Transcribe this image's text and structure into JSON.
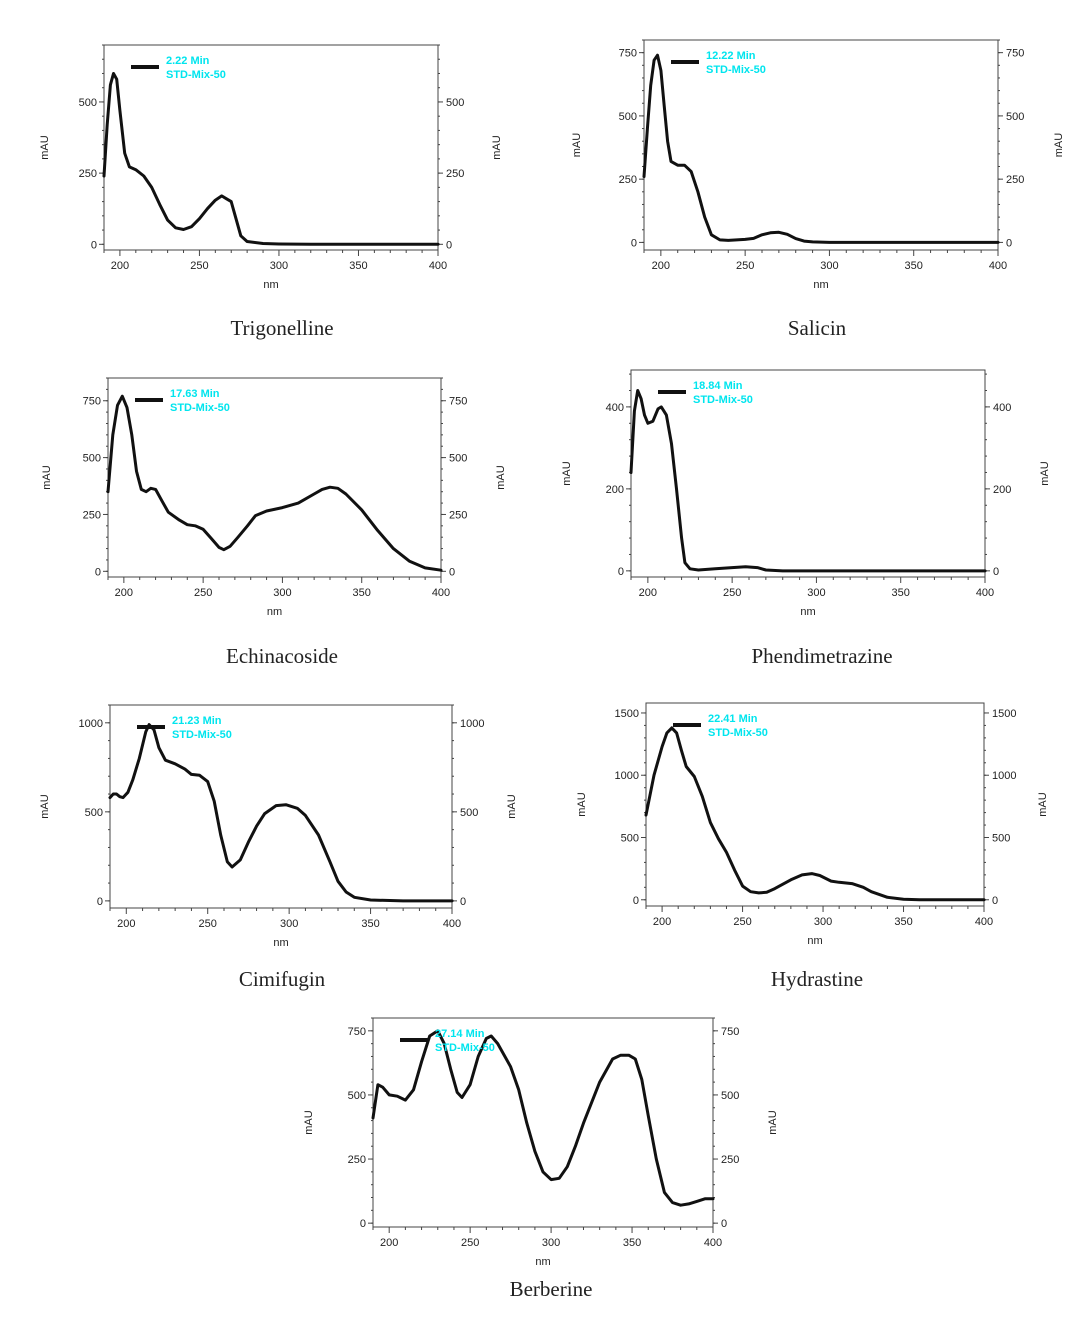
{
  "style": {
    "trace_color": "#111111",
    "legend_text_color": "#00e5ee",
    "axis_color": "#444444"
  },
  "chart_data": [
    {
      "type": "line",
      "caption": "Trigonelline",
      "legend_time": "2.22 Min",
      "legend_sample": "STD-Mix-50",
      "xlabel": "nm",
      "ylabel_left": "mAU",
      "ylabel_right": "mAU",
      "xlim": [
        190,
        400
      ],
      "ylim": [
        -20,
        700
      ],
      "xticks": [
        200,
        250,
        300,
        350,
        400
      ],
      "yticks": [
        0,
        250,
        500
      ],
      "points": [
        [
          190,
          240
        ],
        [
          192,
          420
        ],
        [
          194,
          560
        ],
        [
          196,
          600
        ],
        [
          198,
          580
        ],
        [
          200,
          470
        ],
        [
          203,
          320
        ],
        [
          206,
          272
        ],
        [
          210,
          262
        ],
        [
          215,
          240
        ],
        [
          220,
          200
        ],
        [
          225,
          140
        ],
        [
          230,
          85
        ],
        [
          235,
          58
        ],
        [
          240,
          52
        ],
        [
          245,
          62
        ],
        [
          250,
          90
        ],
        [
          255,
          125
        ],
        [
          260,
          155
        ],
        [
          264,
          170
        ],
        [
          267,
          160
        ],
        [
          270,
          150
        ],
        [
          273,
          90
        ],
        [
          276,
          30
        ],
        [
          280,
          10
        ],
        [
          290,
          3
        ],
        [
          300,
          1
        ],
        [
          320,
          0
        ],
        [
          350,
          0
        ],
        [
          400,
          0
        ]
      ]
    },
    {
      "type": "line",
      "caption": "Salicin",
      "legend_time": "12.22 Min",
      "legend_sample": "STD-Mix-50",
      "xlabel": "nm",
      "ylabel_left": "mAU",
      "ylabel_right": "mAU",
      "xlim": [
        190,
        400
      ],
      "ylim": [
        -30,
        800
      ],
      "xticks": [
        200,
        250,
        300,
        350,
        400
      ],
      "yticks": [
        0,
        250,
        500,
        750
      ],
      "points": [
        [
          190,
          260
        ],
        [
          192,
          450
        ],
        [
          194,
          620
        ],
        [
          196,
          720
        ],
        [
          198,
          740
        ],
        [
          200,
          680
        ],
        [
          202,
          540
        ],
        [
          204,
          400
        ],
        [
          206,
          320
        ],
        [
          210,
          305
        ],
        [
          214,
          305
        ],
        [
          218,
          280
        ],
        [
          222,
          200
        ],
        [
          226,
          100
        ],
        [
          230,
          30
        ],
        [
          235,
          10
        ],
        [
          240,
          8
        ],
        [
          250,
          12
        ],
        [
          255,
          16
        ],
        [
          260,
          30
        ],
        [
          265,
          38
        ],
        [
          270,
          40
        ],
        [
          275,
          32
        ],
        [
          280,
          15
        ],
        [
          285,
          5
        ],
        [
          290,
          2
        ],
        [
          300,
          0
        ],
        [
          350,
          0
        ],
        [
          400,
          0
        ]
      ]
    },
    {
      "type": "line",
      "caption": "Echinacoside",
      "legend_time": "17.63 Min",
      "legend_sample": "STD-Mix-50",
      "xlabel": "nm",
      "ylabel_left": "mAU",
      "ylabel_right": "mAU",
      "xlim": [
        190,
        400
      ],
      "ylim": [
        -25,
        850
      ],
      "xticks": [
        200,
        250,
        300,
        350,
        400
      ],
      "yticks": [
        0,
        250,
        500,
        750
      ],
      "points": [
        [
          190,
          350
        ],
        [
          193,
          600
        ],
        [
          196,
          730
        ],
        [
          199,
          770
        ],
        [
          202,
          720
        ],
        [
          205,
          600
        ],
        [
          208,
          440
        ],
        [
          211,
          360
        ],
        [
          214,
          350
        ],
        [
          217,
          365
        ],
        [
          220,
          360
        ],
        [
          224,
          310
        ],
        [
          228,
          260
        ],
        [
          235,
          225
        ],
        [
          240,
          205
        ],
        [
          245,
          200
        ],
        [
          250,
          185
        ],
        [
          255,
          145
        ],
        [
          260,
          105
        ],
        [
          263,
          95
        ],
        [
          267,
          110
        ],
        [
          272,
          150
        ],
        [
          278,
          200
        ],
        [
          283,
          245
        ],
        [
          290,
          265
        ],
        [
          300,
          280
        ],
        [
          310,
          300
        ],
        [
          320,
          340
        ],
        [
          325,
          360
        ],
        [
          330,
          370
        ],
        [
          335,
          365
        ],
        [
          340,
          340
        ],
        [
          350,
          270
        ],
        [
          360,
          180
        ],
        [
          370,
          100
        ],
        [
          380,
          45
        ],
        [
          390,
          15
        ],
        [
          400,
          5
        ]
      ]
    },
    {
      "type": "line",
      "caption": "Phendimetrazine",
      "legend_time": "18.84 Min",
      "legend_sample": "STD-Mix-50",
      "xlabel": "nm",
      "ylabel_left": "mAU",
      "ylabel_right": "mAU",
      "xlim": [
        190,
        400
      ],
      "ylim": [
        -15,
        490
      ],
      "xticks": [
        200,
        250,
        300,
        350,
        400
      ],
      "yticks": [
        0,
        200,
        400
      ],
      "points": [
        [
          190,
          240
        ],
        [
          192,
          390
        ],
        [
          194,
          440
        ],
        [
          196,
          420
        ],
        [
          198,
          380
        ],
        [
          200,
          360
        ],
        [
          203,
          365
        ],
        [
          206,
          395
        ],
        [
          208,
          400
        ],
        [
          211,
          380
        ],
        [
          214,
          310
        ],
        [
          217,
          200
        ],
        [
          220,
          80
        ],
        [
          222,
          20
        ],
        [
          225,
          5
        ],
        [
          230,
          2
        ],
        [
          240,
          5
        ],
        [
          250,
          8
        ],
        [
          258,
          10
        ],
        [
          265,
          8
        ],
        [
          270,
          2
        ],
        [
          280,
          0
        ],
        [
          300,
          0
        ],
        [
          350,
          0
        ],
        [
          400,
          0
        ]
      ]
    },
    {
      "type": "line",
      "caption": "Cimifugin",
      "legend_time": "21.23 Min",
      "legend_sample": "STD-Mix-50",
      "xlabel": "nm",
      "ylabel_left": "mAU",
      "ylabel_right": "mAU",
      "xlim": [
        190,
        400
      ],
      "ylim": [
        -40,
        1100
      ],
      "xticks": [
        200,
        250,
        300,
        350,
        400
      ],
      "yticks": [
        0,
        500,
        1000
      ],
      "points": [
        [
          190,
          580
        ],
        [
          192,
          600
        ],
        [
          194,
          600
        ],
        [
          196,
          585
        ],
        [
          198,
          580
        ],
        [
          201,
          610
        ],
        [
          204,
          680
        ],
        [
          208,
          800
        ],
        [
          212,
          950
        ],
        [
          214,
          990
        ],
        [
          217,
          960
        ],
        [
          220,
          860
        ],
        [
          224,
          790
        ],
        [
          230,
          770
        ],
        [
          236,
          740
        ],
        [
          240,
          710
        ],
        [
          245,
          705
        ],
        [
          250,
          670
        ],
        [
          254,
          560
        ],
        [
          258,
          370
        ],
        [
          262,
          220
        ],
        [
          265,
          190
        ],
        [
          270,
          230
        ],
        [
          275,
          330
        ],
        [
          280,
          420
        ],
        [
          285,
          490
        ],
        [
          292,
          535
        ],
        [
          298,
          540
        ],
        [
          305,
          520
        ],
        [
          310,
          480
        ],
        [
          318,
          370
        ],
        [
          325,
          220
        ],
        [
          330,
          110
        ],
        [
          335,
          50
        ],
        [
          340,
          20
        ],
        [
          350,
          5
        ],
        [
          370,
          0
        ],
        [
          400,
          0
        ]
      ]
    },
    {
      "type": "line",
      "caption": "Hydrastine",
      "legend_time": "22.41 Min",
      "legend_sample": "STD-Mix-50",
      "xlabel": "nm",
      "ylabel_left": "mAU",
      "ylabel_right": "mAU",
      "xlim": [
        190,
        400
      ],
      "ylim": [
        -50,
        1580
      ],
      "xticks": [
        200,
        250,
        300,
        350,
        400
      ],
      "yticks": [
        0,
        500,
        1000,
        1500
      ],
      "points": [
        [
          190,
          680
        ],
        [
          195,
          1000
        ],
        [
          200,
          1230
        ],
        [
          203,
          1340
        ],
        [
          206,
          1380
        ],
        [
          209,
          1340
        ],
        [
          212,
          1200
        ],
        [
          215,
          1070
        ],
        [
          220,
          990
        ],
        [
          225,
          830
        ],
        [
          230,
          620
        ],
        [
          235,
          490
        ],
        [
          240,
          380
        ],
        [
          245,
          240
        ],
        [
          250,
          110
        ],
        [
          255,
          65
        ],
        [
          260,
          55
        ],
        [
          265,
          60
        ],
        [
          270,
          90
        ],
        [
          280,
          160
        ],
        [
          287,
          200
        ],
        [
          293,
          210
        ],
        [
          298,
          195
        ],
        [
          305,
          150
        ],
        [
          310,
          140
        ],
        [
          318,
          130
        ],
        [
          325,
          100
        ],
        [
          330,
          65
        ],
        [
          340,
          20
        ],
        [
          350,
          5
        ],
        [
          360,
          0
        ],
        [
          400,
          0
        ]
      ]
    },
    {
      "type": "line",
      "caption": "Berberine",
      "legend_time": "27.14 Min",
      "legend_sample": "STD-Mix-50",
      "xlabel": "nm",
      "ylabel_left": "mAU",
      "ylabel_right": "mAU",
      "xlim": [
        190,
        400
      ],
      "ylim": [
        -15,
        800
      ],
      "xticks": [
        200,
        250,
        300,
        350,
        400
      ],
      "yticks": [
        0,
        250,
        500,
        750
      ],
      "points": [
        [
          190,
          410
        ],
        [
          193,
          540
        ],
        [
          196,
          530
        ],
        [
          200,
          500
        ],
        [
          205,
          495
        ],
        [
          210,
          480
        ],
        [
          215,
          520
        ],
        [
          220,
          630
        ],
        [
          225,
          730
        ],
        [
          230,
          750
        ],
        [
          234,
          700
        ],
        [
          238,
          600
        ],
        [
          242,
          510
        ],
        [
          245,
          490
        ],
        [
          250,
          540
        ],
        [
          255,
          650
        ],
        [
          260,
          720
        ],
        [
          263,
          730
        ],
        [
          267,
          700
        ],
        [
          275,
          610
        ],
        [
          280,
          520
        ],
        [
          285,
          390
        ],
        [
          290,
          280
        ],
        [
          295,
          200
        ],
        [
          300,
          170
        ],
        [
          305,
          175
        ],
        [
          310,
          220
        ],
        [
          315,
          300
        ],
        [
          320,
          390
        ],
        [
          330,
          550
        ],
        [
          338,
          640
        ],
        [
          343,
          655
        ],
        [
          348,
          655
        ],
        [
          352,
          640
        ],
        [
          356,
          560
        ],
        [
          360,
          420
        ],
        [
          365,
          250
        ],
        [
          370,
          120
        ],
        [
          375,
          80
        ],
        [
          380,
          70
        ],
        [
          385,
          75
        ],
        [
          390,
          85
        ],
        [
          395,
          95
        ],
        [
          400,
          95
        ]
      ]
    }
  ]
}
